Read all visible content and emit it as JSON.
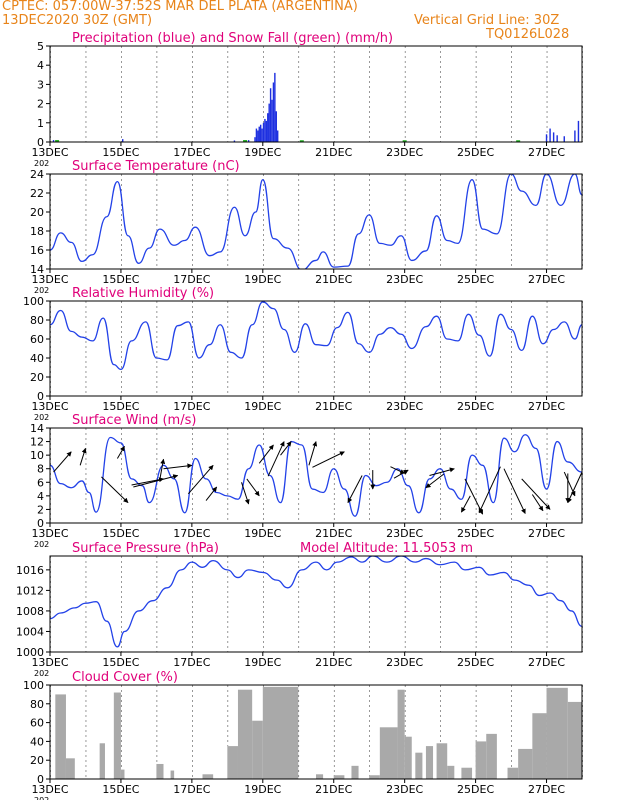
{
  "header": {
    "line1": "CPTEC:  057:00W-37:52S   MAR DEL PLATA (ARGENTINA)",
    "line2": "13DEC2020 30Z (GMT)",
    "grid_note": "Vertical Grid Line: 30Z",
    "run_id": "TQ0126L028"
  },
  "colors": {
    "header": "#e8841a",
    "title": "#e0007a",
    "line": "#2342e8",
    "precip": "#1e30e0",
    "snow": "#22b022",
    "cloud": "#a9a9a9",
    "arrow": "#000000"
  },
  "x_axis": {
    "start_day": 13,
    "end_day": 28,
    "tick_labels": [
      "13DEC",
      "15DEC",
      "17DEC",
      "19DEC",
      "21DEC",
      "23DEC",
      "25DEC",
      "27DEC"
    ],
    "tick_days": [
      13,
      15,
      17,
      19,
      21,
      23,
      25,
      27
    ],
    "year_stub": "202"
  },
  "chart_data": [
    {
      "id": "precip",
      "type": "bar",
      "title": "Precipitation (blue) and Snow Fall (green) (mm/h)",
      "ylim": [
        0,
        5
      ],
      "yticks": [
        0,
        1,
        2,
        3,
        4,
        5
      ],
      "bars": [
        [
          13.1,
          0.1
        ],
        [
          15.05,
          0.15
        ],
        [
          18.2,
          0.08
        ],
        [
          18.6,
          0.1
        ],
        [
          18.78,
          0.25
        ],
        [
          18.82,
          0.7
        ],
        [
          18.86,
          0.6
        ],
        [
          18.9,
          0.8
        ],
        [
          18.94,
          0.9
        ],
        [
          18.98,
          0.7
        ],
        [
          19.02,
          1.0
        ],
        [
          19.06,
          1.2
        ],
        [
          19.1,
          1.1
        ],
        [
          19.14,
          1.5
        ],
        [
          19.18,
          2.0
        ],
        [
          19.22,
          2.8
        ],
        [
          19.26,
          2.2
        ],
        [
          19.3,
          3.1
        ],
        [
          19.34,
          3.6
        ],
        [
          19.38,
          1.6
        ],
        [
          19.42,
          0.6
        ],
        [
          27.0,
          0.4
        ],
        [
          27.1,
          0.7
        ],
        [
          27.2,
          0.5
        ],
        [
          27.3,
          0.35
        ],
        [
          27.5,
          0.3
        ],
        [
          27.8,
          0.6
        ],
        [
          27.9,
          1.1
        ]
      ],
      "snow": [
        [
          13.2,
          0.05
        ],
        [
          18.5,
          0.05
        ],
        [
          20.1,
          0.04
        ],
        [
          23.0,
          0.04
        ],
        [
          26.2,
          0.04
        ]
      ]
    },
    {
      "id": "temperature",
      "type": "line",
      "title": "Surface Temperature (nC)",
      "ylim": [
        14,
        24
      ],
      "yticks": [
        14,
        16,
        18,
        20,
        22,
        24
      ],
      "points": [
        [
          13,
          16
        ],
        [
          13.3,
          17.8
        ],
        [
          13.6,
          16.8
        ],
        [
          13.9,
          14.8
        ],
        [
          14.2,
          15.5
        ],
        [
          14.6,
          19.5
        ],
        [
          14.9,
          23.2
        ],
        [
          15.2,
          17.5
        ],
        [
          15.5,
          14.6
        ],
        [
          15.8,
          16.2
        ],
        [
          16.1,
          18.2
        ],
        [
          16.5,
          16.5
        ],
        [
          16.8,
          17
        ],
        [
          17.1,
          18.4
        ],
        [
          17.5,
          15.4
        ],
        [
          17.8,
          15.8
        ],
        [
          18.2,
          20.5
        ],
        [
          18.5,
          17.5
        ],
        [
          18.8,
          20
        ],
        [
          19.0,
          23.4
        ],
        [
          19.3,
          17.2
        ],
        [
          19.7,
          16.2
        ],
        [
          20.1,
          13.9
        ],
        [
          20.5,
          14.9
        ],
        [
          20.7,
          15.8
        ],
        [
          21.0,
          14.2
        ],
        [
          21.4,
          14.3
        ],
        [
          21.7,
          17.7
        ],
        [
          22.0,
          19.7
        ],
        [
          22.3,
          16.7
        ],
        [
          22.6,
          16.5
        ],
        [
          22.9,
          17.5
        ],
        [
          23.2,
          14.9
        ],
        [
          23.6,
          15.9
        ],
        [
          23.9,
          19.6
        ],
        [
          24.2,
          17
        ],
        [
          24.5,
          16.7
        ],
        [
          24.9,
          23.4
        ],
        [
          25.2,
          18.2
        ],
        [
          25.6,
          17.7
        ],
        [
          26.0,
          24
        ],
        [
          26.3,
          22.2
        ],
        [
          26.7,
          20.7
        ],
        [
          27.0,
          24
        ],
        [
          27.4,
          20.7
        ],
        [
          27.8,
          24
        ],
        [
          28,
          21.8
        ]
      ]
    },
    {
      "id": "humidity",
      "type": "line",
      "title": "Relative Humidity (%)",
      "ylim": [
        0,
        100
      ],
      "yticks": [
        0,
        20,
        40,
        60,
        80,
        100
      ],
      "points": [
        [
          13,
          75
        ],
        [
          13.3,
          90
        ],
        [
          13.6,
          68
        ],
        [
          13.9,
          62
        ],
        [
          14.2,
          58
        ],
        [
          14.5,
          82
        ],
        [
          14.8,
          33
        ],
        [
          15.0,
          28
        ],
        [
          15.3,
          58
        ],
        [
          15.7,
          78
        ],
        [
          16.0,
          40
        ],
        [
          16.3,
          38
        ],
        [
          16.6,
          74
        ],
        [
          16.9,
          78
        ],
        [
          17.2,
          40
        ],
        [
          17.5,
          54
        ],
        [
          17.8,
          75
        ],
        [
          18.1,
          46
        ],
        [
          18.4,
          40
        ],
        [
          18.7,
          75
        ],
        [
          19.0,
          99
        ],
        [
          19.3,
          92
        ],
        [
          19.6,
          70
        ],
        [
          19.9,
          46
        ],
        [
          20.2,
          76
        ],
        [
          20.5,
          54
        ],
        [
          20.8,
          53
        ],
        [
          21.1,
          72
        ],
        [
          21.4,
          88
        ],
        [
          21.7,
          55
        ],
        [
          22.0,
          46
        ],
        [
          22.3,
          65
        ],
        [
          22.6,
          72
        ],
        [
          22.9,
          65
        ],
        [
          23.2,
          50
        ],
        [
          23.6,
          73
        ],
        [
          23.9,
          84
        ],
        [
          24.2,
          60
        ],
        [
          24.5,
          58
        ],
        [
          24.8,
          86
        ],
        [
          25.1,
          64
        ],
        [
          25.4,
          42
        ],
        [
          25.7,
          86
        ],
        [
          26.0,
          70
        ],
        [
          26.3,
          48
        ],
        [
          26.6,
          84
        ],
        [
          26.9,
          55
        ],
        [
          27.2,
          70
        ],
        [
          27.5,
          78
        ],
        [
          27.8,
          60
        ],
        [
          28,
          75
        ]
      ]
    },
    {
      "id": "wind",
      "type": "line",
      "title": "Surface Wind (m/s)",
      "ylim": [
        0,
        14
      ],
      "yticks": [
        0,
        2,
        4,
        6,
        8,
        10,
        12,
        14
      ],
      "points": [
        [
          13,
          8.5
        ],
        [
          13.3,
          5.8
        ],
        [
          13.6,
          5.2
        ],
        [
          13.9,
          6.2
        ],
        [
          14.1,
          4.5
        ],
        [
          14.3,
          1.6
        ],
        [
          14.7,
          12.6
        ],
        [
          15.0,
          11.8
        ],
        [
          15.3,
          6.5
        ],
        [
          15.6,
          5.5
        ],
        [
          15.8,
          3
        ],
        [
          16.2,
          8.5
        ],
        [
          16.5,
          6.5
        ],
        [
          16.8,
          1.5
        ],
        [
          17.1,
          9.5
        ],
        [
          17.4,
          6.5
        ],
        [
          17.7,
          4.5
        ],
        [
          18.0,
          4
        ],
        [
          18.3,
          3.5
        ],
        [
          18.6,
          8
        ],
        [
          18.9,
          11.5
        ],
        [
          19.2,
          7
        ],
        [
          19.5,
          3
        ],
        [
          19.8,
          12
        ],
        [
          20.1,
          11.5
        ],
        [
          20.4,
          5
        ],
        [
          20.7,
          4.5
        ],
        [
          21.0,
          8
        ],
        [
          21.3,
          5
        ],
        [
          21.6,
          1
        ],
        [
          21.9,
          7
        ],
        [
          22.2,
          5.5
        ],
        [
          22.5,
          6
        ],
        [
          22.8,
          8
        ],
        [
          23.1,
          5.5
        ],
        [
          23.4,
          1.5
        ],
        [
          23.7,
          6.5
        ],
        [
          24.0,
          8
        ],
        [
          24.3,
          5
        ],
        [
          24.6,
          3.5
        ],
        [
          24.9,
          10
        ],
        [
          25.2,
          8.5
        ],
        [
          25.5,
          3
        ],
        [
          25.8,
          12.5
        ],
        [
          26.1,
          10.5
        ],
        [
          26.4,
          13
        ],
        [
          26.7,
          11
        ],
        [
          27.0,
          5
        ],
        [
          27.3,
          12
        ],
        [
          27.6,
          9
        ],
        [
          28,
          7.5
        ]
      ],
      "arrows": [
        [
          13.1,
          7.5,
          13.6,
          10.5
        ],
        [
          13.85,
          8.5,
          14,
          11
        ],
        [
          14.45,
          6.8,
          15.2,
          3
        ],
        [
          14.9,
          9.5,
          15.1,
          11.3
        ],
        [
          15.3,
          5.6,
          16.2,
          6.5
        ],
        [
          15.35,
          5.3,
          16.6,
          7
        ],
        [
          16.1,
          6.5,
          16.2,
          9.4
        ],
        [
          16.2,
          8,
          17,
          8.5
        ],
        [
          16.9,
          4.3,
          17.6,
          8.5
        ],
        [
          17.4,
          3.3,
          17.7,
          5.3
        ],
        [
          18.4,
          6,
          18.6,
          2.8
        ],
        [
          18.55,
          6.5,
          18.9,
          4
        ],
        [
          18.9,
          8.8,
          19.3,
          11.5
        ],
        [
          19.15,
          6.9,
          19.6,
          12
        ],
        [
          19.5,
          10,
          19.8,
          12
        ],
        [
          20.3,
          8.5,
          20.5,
          12
        ],
        [
          20.4,
          8.2,
          21.3,
          10.5
        ],
        [
          21.8,
          7,
          21.4,
          3
        ],
        [
          22.1,
          7.8,
          22.1,
          5
        ],
        [
          22.6,
          8.3,
          23.0,
          7.3
        ],
        [
          22.7,
          6.6,
          23.1,
          7.8
        ],
        [
          23.7,
          7,
          24.4,
          8
        ],
        [
          24.1,
          7.2,
          23.6,
          5.2
        ],
        [
          24.7,
          6.5,
          25.2,
          1.3
        ],
        [
          24.85,
          4,
          24.6,
          1.6
        ],
        [
          25.7,
          8.3,
          25.1,
          1.5
        ],
        [
          25.8,
          8,
          26.4,
          1.4
        ],
        [
          26.3,
          6.5,
          27.1,
          2
        ],
        [
          26.6,
          4.2,
          26.9,
          1.8
        ],
        [
          27.5,
          7.5,
          27.8,
          4
        ],
        [
          27.6,
          7.3,
          27.6,
          3
        ],
        [
          28,
          7.5,
          27.6,
          3
        ]
      ]
    },
    {
      "id": "pressure",
      "type": "line",
      "title": "Surface Pressure (hPa)",
      "annotation": "Model Altitude: 11.5053  m",
      "ylim": [
        1000,
        1018.7
      ],
      "yticks": [
        1000,
        1004,
        1008,
        1012,
        1016
      ],
      "points": [
        [
          13,
          1006.5
        ],
        [
          13.3,
          1007.6
        ],
        [
          13.7,
          1008.6
        ],
        [
          14.0,
          1009.5
        ],
        [
          14.3,
          1009.8
        ],
        [
          14.6,
          1006
        ],
        [
          14.9,
          1001
        ],
        [
          15.1,
          1004
        ],
        [
          15.5,
          1008
        ],
        [
          15.9,
          1010
        ],
        [
          16.3,
          1012.5
        ],
        [
          16.7,
          1016
        ],
        [
          17.0,
          1017.5
        ],
        [
          17.3,
          1016.5
        ],
        [
          17.6,
          1017.8
        ],
        [
          18.0,
          1016
        ],
        [
          18.3,
          1014.5
        ],
        [
          18.6,
          1016
        ],
        [
          19.0,
          1015.5
        ],
        [
          19.4,
          1014
        ],
        [
          19.7,
          1012.5
        ],
        [
          20.1,
          1016
        ],
        [
          20.5,
          1017.5
        ],
        [
          20.8,
          1016
        ],
        [
          21.1,
          1017.5
        ],
        [
          21.5,
          1018.5
        ],
        [
          21.8,
          1017.5
        ],
        [
          22.1,
          1018.7
        ],
        [
          22.5,
          1017.5
        ],
        [
          22.9,
          1018.7
        ],
        [
          23.3,
          1017.5
        ],
        [
          23.6,
          1018.2
        ],
        [
          24.0,
          1017
        ],
        [
          24.4,
          1017.5
        ],
        [
          24.7,
          1016
        ],
        [
          25.1,
          1016.5
        ],
        [
          25.4,
          1015
        ],
        [
          25.8,
          1015.5
        ],
        [
          26.1,
          1014
        ],
        [
          26.5,
          1013
        ],
        [
          26.8,
          1011
        ],
        [
          27.1,
          1011.5
        ],
        [
          27.4,
          1010
        ],
        [
          27.7,
          1008
        ],
        [
          28,
          1005
        ]
      ]
    },
    {
      "id": "cloud",
      "type": "area",
      "title": "Cloud Cover (%)",
      "ylim": [
        0,
        100
      ],
      "yticks": [
        0,
        20,
        40,
        60,
        80,
        100
      ],
      "segments": [
        [
          13.15,
          13.45,
          90
        ],
        [
          13.45,
          13.7,
          22
        ],
        [
          14.4,
          14.55,
          38
        ],
        [
          14.8,
          15.0,
          92
        ],
        [
          15.0,
          15.1,
          10
        ],
        [
          16.0,
          16.2,
          16
        ],
        [
          16.4,
          16.5,
          9
        ],
        [
          17.3,
          17.6,
          5
        ],
        [
          18.0,
          18.3,
          35
        ],
        [
          18.3,
          18.7,
          95
        ],
        [
          18.7,
          19.0,
          62
        ],
        [
          19.0,
          20.0,
          98
        ],
        [
          20.5,
          20.7,
          5
        ],
        [
          21.0,
          21.3,
          4
        ],
        [
          21.5,
          21.7,
          14
        ],
        [
          22.0,
          22.3,
          4
        ],
        [
          22.3,
          22.8,
          55
        ],
        [
          22.8,
          23.0,
          95
        ],
        [
          23.0,
          23.2,
          45
        ],
        [
          23.3,
          23.5,
          28
        ],
        [
          23.6,
          23.8,
          35
        ],
        [
          23.9,
          24.2,
          38
        ],
        [
          24.2,
          24.4,
          14
        ],
        [
          24.6,
          24.9,
          12
        ],
        [
          25.0,
          25.3,
          40
        ],
        [
          25.3,
          25.6,
          48
        ],
        [
          25.9,
          26.2,
          12
        ],
        [
          26.2,
          26.6,
          32
        ],
        [
          26.6,
          27.0,
          70
        ],
        [
          27.0,
          27.6,
          97
        ],
        [
          27.6,
          28.0,
          82
        ]
      ]
    }
  ]
}
